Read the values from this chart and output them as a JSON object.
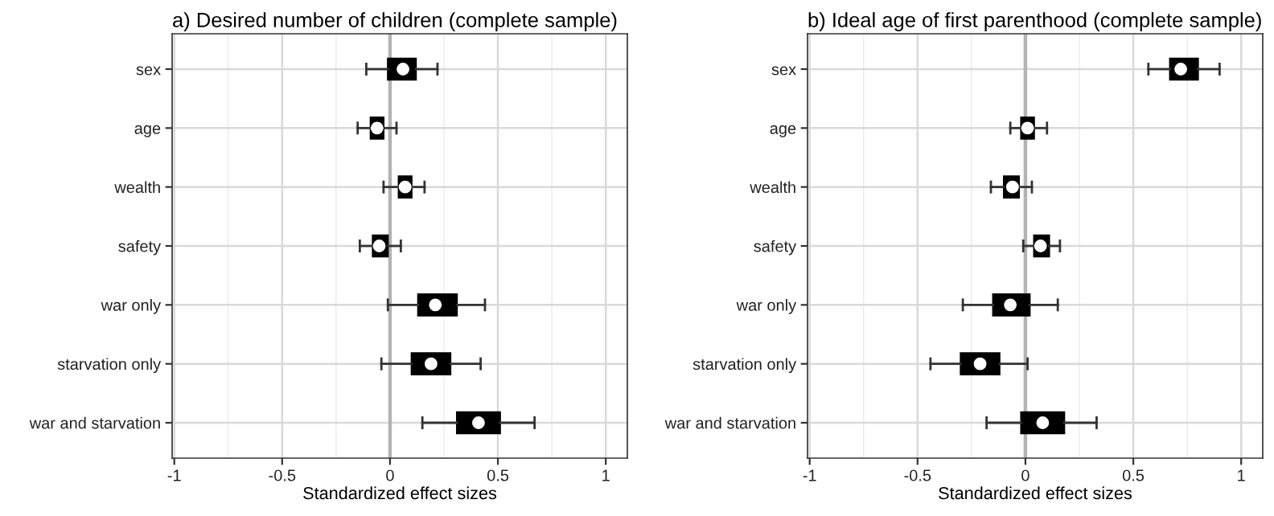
{
  "chart_data": [
    {
      "type": "box",
      "title": "a) Desired number of children (complete sample)",
      "xlabel": "Standardized effect sizes",
      "orientation": "horizontal",
      "categories": [
        "sex",
        "age",
        "wealth",
        "safety",
        "war only",
        "starvation only",
        "war and starvation"
      ],
      "boxes": [
        {
          "low": -0.11,
          "q1": -0.01,
          "median": 0.06,
          "q3": 0.12,
          "high": 0.22
        },
        {
          "low": -0.15,
          "q1": -0.09,
          "median": -0.06,
          "q3": -0.03,
          "high": 0.03
        },
        {
          "low": -0.03,
          "q1": 0.04,
          "median": 0.07,
          "q3": 0.1,
          "high": 0.16
        },
        {
          "low": -0.14,
          "q1": -0.08,
          "median": -0.05,
          "q3": -0.01,
          "high": 0.05
        },
        {
          "low": -0.01,
          "q1": 0.13,
          "median": 0.21,
          "q3": 0.31,
          "high": 0.44
        },
        {
          "low": -0.04,
          "q1": 0.1,
          "median": 0.19,
          "q3": 0.28,
          "high": 0.42
        },
        {
          "low": 0.15,
          "q1": 0.31,
          "median": 0.41,
          "q3": 0.51,
          "high": 0.67
        }
      ],
      "color": "#000000",
      "xlim": [
        -1.01,
        1.1
      ],
      "xticks": [
        -1,
        -0.5,
        0,
        0.5,
        1
      ],
      "grid": true,
      "ref_lines": [
        {
          "axis": "x",
          "value": 0,
          "color": "#b3b3b3"
        }
      ]
    },
    {
      "type": "box",
      "title": "b) Ideal age of first parenthood (complete sample)",
      "xlabel": "Standardized effect sizes",
      "orientation": "horizontal",
      "categories": [
        "sex",
        "age",
        "wealth",
        "safety",
        "war only",
        "starvation only",
        "war and starvation"
      ],
      "boxes": [
        {
          "low": 0.57,
          "q1": 0.67,
          "median": 0.72,
          "q3": 0.8,
          "high": 0.9
        },
        {
          "low": -0.07,
          "q1": -0.02,
          "median": 0.01,
          "q3": 0.04,
          "high": 0.1
        },
        {
          "low": -0.16,
          "q1": -0.1,
          "median": -0.06,
          "q3": -0.03,
          "high": 0.03
        },
        {
          "low": -0.01,
          "q1": 0.04,
          "median": 0.07,
          "q3": 0.11,
          "high": 0.16
        },
        {
          "low": -0.29,
          "q1": -0.15,
          "median": -0.07,
          "q3": 0.02,
          "high": 0.15
        },
        {
          "low": -0.44,
          "q1": -0.3,
          "median": -0.21,
          "q3": -0.12,
          "high": 0.01
        },
        {
          "low": -0.18,
          "q1": -0.02,
          "median": 0.08,
          "q3": 0.18,
          "high": 0.33
        }
      ],
      "color": "#000000",
      "xlim": [
        -1.01,
        1.1
      ],
      "xticks": [
        -1,
        -0.5,
        0,
        0.5,
        1
      ],
      "grid": true,
      "ref_lines": [
        {
          "axis": "x",
          "value": 0,
          "color": "#b3b3b3"
        }
      ]
    }
  ]
}
